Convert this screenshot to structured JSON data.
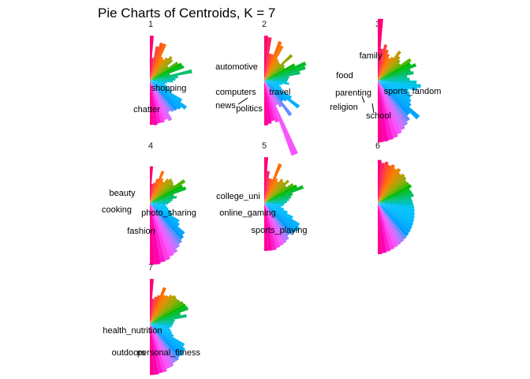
{
  "chart_data": {
    "type": "pie",
    "title": "Pie Charts of Centroids, K = 7",
    "subtitle": "",
    "legend": "none",
    "hue_start": 15,
    "hue_end": 375,
    "panels": [
      {
        "title": "1",
        "radii": [
          0.98,
          0.5,
          0.76,
          0.86,
          0.86,
          0.58,
          0.55,
          0.62,
          0.7,
          0.66,
          0.5,
          0.72,
          0.78,
          0.8,
          0.46,
          0.94,
          0.62,
          0.56,
          0.5,
          0.38,
          0.34,
          0.38,
          0.44,
          0.52,
          0.82,
          0.99,
          0.9,
          0.86,
          0.84,
          0.8,
          0.98,
          0.92,
          0.96,
          0.95,
          0.98,
          0.97
        ],
        "labels": [
          {
            "text": "shopping",
            "slice": 3
          },
          {
            "text": "chatter",
            "slice": 12
          }
        ]
      },
      {
        "title": "2",
        "radii": [
          0.98,
          0.95,
          0.6,
          0.6,
          0.92,
          0.85,
          0.55,
          0.52,
          0.5,
          0.82,
          0.55,
          0.52,
          0.75,
          0.98,
          0.94,
          0.8,
          0.55,
          0.52,
          0.5,
          0.55,
          0.4,
          0.35,
          0.4,
          0.45,
          0.7,
          0.95,
          0.65,
          0.6,
          0.95,
          0.68,
          0.6,
          1.75,
          0.95,
          0.9,
          0.95,
          0.98
        ],
        "labels": [
          {
            "text": "travel",
            "slice": 3
          },
          {
            "text": "politics",
            "slice": 13
          },
          {
            "text": "news",
            "slice": 20
          },
          {
            "text": "computers",
            "slice": 26
          },
          {
            "text": "automotive",
            "slice": 31
          }
        ]
      },
      {
        "title": "3",
        "radii": [
          1.35,
          0.7,
          0.8,
          0.7,
          0.62,
          0.55,
          0.6,
          0.8,
          0.7,
          0.65,
          0.6,
          0.85,
          0.8,
          0.9,
          0.75,
          0.8,
          0.65,
          0.7,
          0.85,
          0.95,
          0.88,
          0.7,
          0.75,
          0.8,
          0.85,
          0.9,
          1.2,
          1.0,
          1.1,
          1.15,
          1.2,
          1.25,
          1.3,
          1.32,
          1.34,
          1.35
        ],
        "labels": [
          {
            "text": "sports_fandom",
            "slice": 3
          },
          {
            "text": "school",
            "slice": 12
          },
          {
            "text": "religion",
            "slice": 20
          },
          {
            "text": "parenting",
            "slice": 22
          },
          {
            "text": "food",
            "slice": 25
          },
          {
            "text": "family",
            "slice": 29
          }
        ]
      },
      {
        "title": "4",
        "radii": [
          0.8,
          0.42,
          0.45,
          0.55,
          0.75,
          0.6,
          0.55,
          0.65,
          0.7,
          0.68,
          0.65,
          0.9,
          0.8,
          0.85,
          0.55,
          0.6,
          0.5,
          0.45,
          0.4,
          0.35,
          0.38,
          0.42,
          0.5,
          0.55,
          0.75,
          0.8,
          1.0,
          1.05,
          1.1,
          1.15,
          1.22,
          1.25,
          1.3,
          1.32,
          1.35,
          1.35
        ],
        "labels": [
          {
            "text": "photo_sharing",
            "slice": 3
          },
          {
            "text": "fashion",
            "slice": 12
          },
          {
            "text": "cooking",
            "slice": 26
          },
          {
            "text": "beauty",
            "slice": 30
          }
        ]
      },
      {
        "title": "5",
        "radii": [
          1.0,
          0.7,
          0.55,
          0.55,
          0.92,
          0.6,
          0.55,
          0.65,
          0.62,
          0.72,
          0.6,
          0.75,
          0.8,
          0.92,
          0.65,
          0.6,
          0.55,
          0.5,
          0.45,
          0.42,
          0.38,
          0.45,
          0.55,
          0.7,
          0.9,
          0.95,
          0.92,
          0.9,
          0.88,
          0.95,
          0.98,
          1.0,
          1.02,
          1.05,
          1.05,
          1.05
        ],
        "labels": [
          {
            "text": "sports_playing",
            "slice": 3
          },
          {
            "text": "online_gaming",
            "slice": 12
          },
          {
            "text": "college_uni",
            "slice": 26
          }
        ]
      },
      {
        "title": "6",
        "radii": [
          0.94,
          0.88,
          0.92,
          0.86,
          0.9,
          0.84,
          0.88,
          0.8,
          0.84,
          0.82,
          0.78,
          0.8,
          0.82,
          0.76,
          0.78,
          0.8,
          0.74,
          0.76,
          0.78,
          0.8,
          0.82,
          0.84,
          0.86,
          0.88,
          0.9,
          0.92,
          0.94,
          0.96,
          0.98,
          1.0,
          1.02,
          1.04,
          1.06,
          1.08,
          1.1,
          1.12
        ],
        "labels": []
      },
      {
        "title": "7",
        "radii": [
          0.98,
          0.55,
          0.6,
          0.65,
          0.85,
          0.7,
          0.72,
          0.78,
          0.82,
          0.8,
          0.82,
          0.86,
          0.88,
          0.9,
          0.7,
          0.82,
          0.55,
          0.52,
          0.5,
          0.48,
          0.44,
          0.48,
          0.52,
          0.58,
          0.88,
          0.95,
          0.98,
          0.96,
          1.0,
          1.0,
          1.05,
          1.05,
          1.1,
          1.1,
          1.12,
          1.12
        ],
        "labels": [
          {
            "text": "personal_fitness",
            "slice": 10
          },
          {
            "text": "outdoors",
            "slice": 19
          },
          {
            "text": "health_nutrition",
            "slice": 27
          }
        ]
      }
    ]
  }
}
